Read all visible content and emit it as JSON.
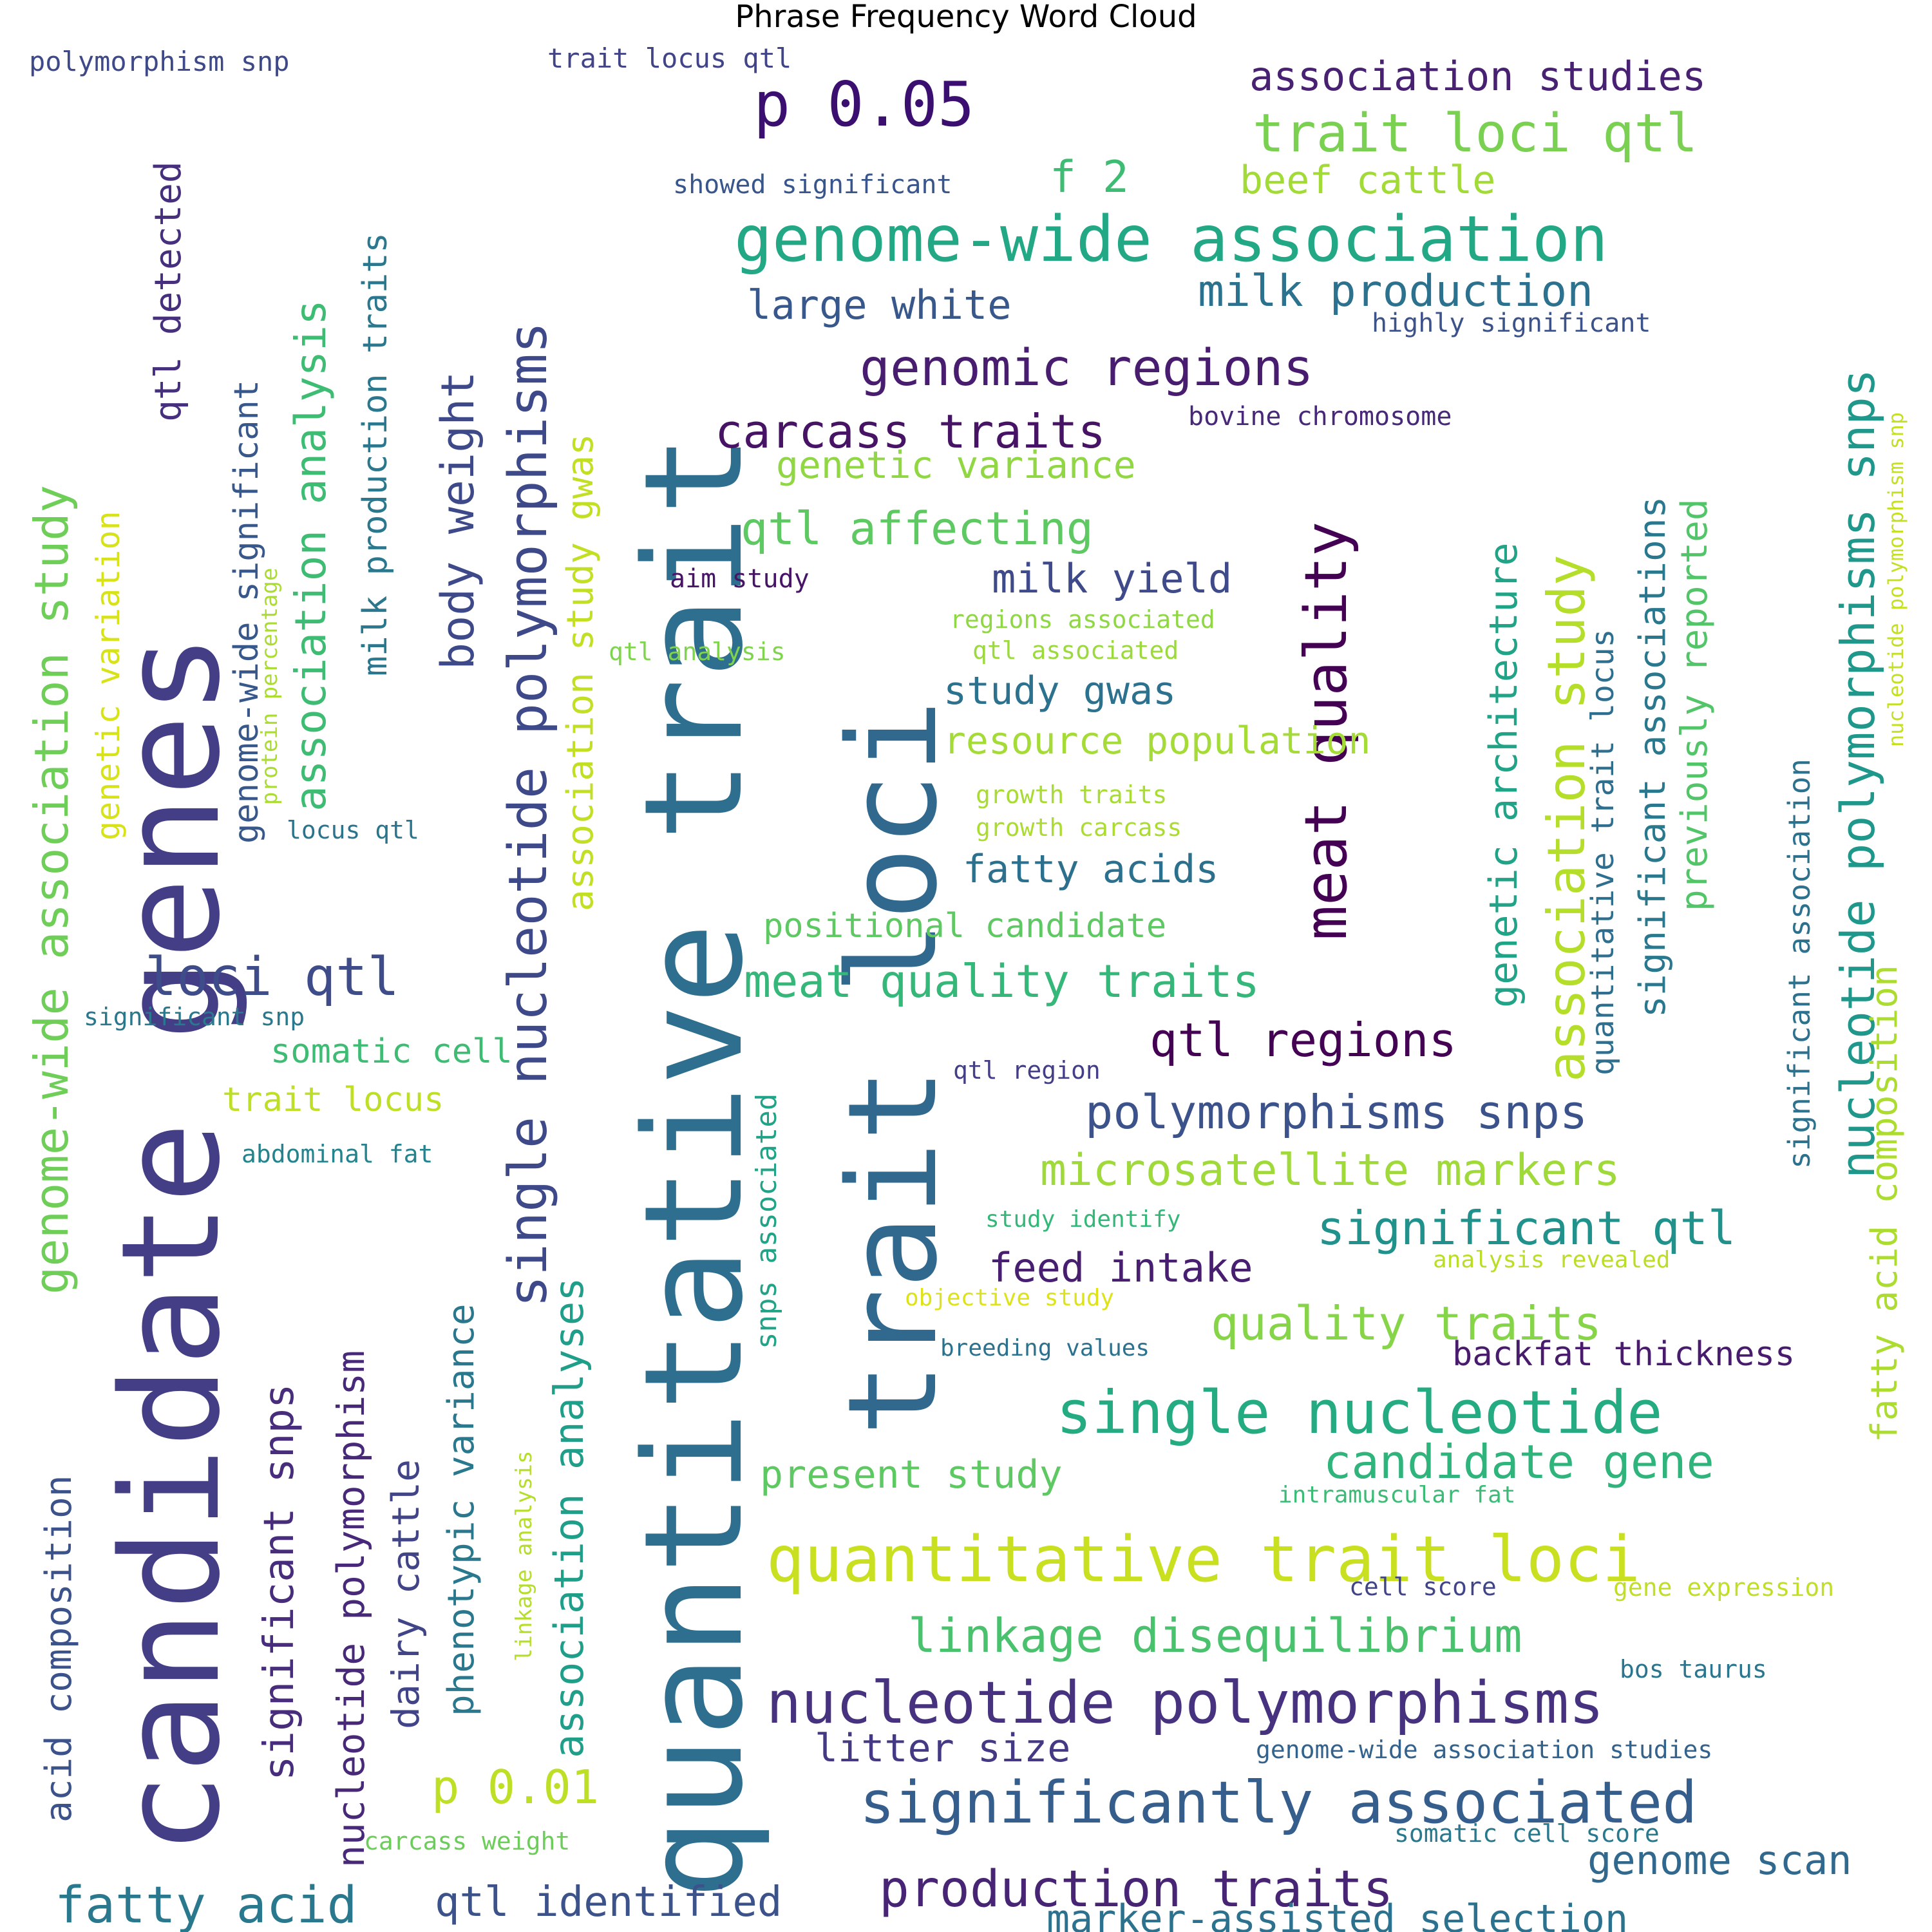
{
  "chart_data": {
    "type": "wordcloud",
    "title": "Phrase Frequency Word Cloud",
    "colormap": "viridis",
    "background": "#ffffff",
    "words": [
      {
        "text": "quantitative trait",
        "weight": 100,
        "color": "#2e6e8e"
      },
      {
        "text": "candidate genes",
        "weight": 96,
        "color": "#433e85"
      },
      {
        "text": "trait loci",
        "weight": 86,
        "color": "#31688e"
      },
      {
        "text": "genome-wide association",
        "weight": 42,
        "color": "#22a884"
      },
      {
        "text": "quantitative trait loci",
        "weight": 42,
        "color": "#c8e020"
      },
      {
        "text": "single nucleotide",
        "weight": 40,
        "color": "#25ab82"
      },
      {
        "text": "significantly associated",
        "weight": 38,
        "color": "#355e8d"
      },
      {
        "text": "nucleotide polymorphisms",
        "weight": 38,
        "color": "#46327e"
      },
      {
        "text": "meat quality",
        "weight": 38,
        "color": "#440154"
      },
      {
        "text": "p 0.05",
        "weight": 38,
        "color": "#3b0f70"
      },
      {
        "text": "single nucleotide polymorphisms",
        "weight": 37,
        "color": "#3e4989"
      },
      {
        "text": "loci qtl",
        "weight": 35,
        "color": "#3e4c8a"
      },
      {
        "text": "trait loci qtl",
        "weight": 34,
        "color": "#7ad151"
      },
      {
        "text": "association study",
        "weight": 33,
        "color": "#b5de2b"
      },
      {
        "text": "fatty acid",
        "weight": 32,
        "color": "#2a788e"
      },
      {
        "text": "genomic regions",
        "weight": 32,
        "color": "#481c6e"
      },
      {
        "text": "production traits",
        "weight": 31,
        "color": "#482475"
      },
      {
        "text": "nucleotide polymorphisms snps",
        "weight": 31,
        "color": "#1f988b"
      },
      {
        "text": "genome-wide association study",
        "weight": 31,
        "color": "#6ece58"
      },
      {
        "text": "linkage disequilibrium",
        "weight": 29,
        "color": "#4ac16d"
      },
      {
        "text": "qtl regions",
        "weight": 29,
        "color": "#440154"
      },
      {
        "text": "carcass traits",
        "weight": 29,
        "color": "#471365"
      },
      {
        "text": "polymorphisms snps",
        "weight": 29,
        "color": "#3b528b"
      },
      {
        "text": "p 0.01",
        "weight": 29,
        "color": "#bddf26"
      },
      {
        "text": "microsatellite markers",
        "weight": 28,
        "color": "#9fda3a"
      },
      {
        "text": "quality traits",
        "weight": 28,
        "color": "#86d549"
      },
      {
        "text": "significant qtl",
        "weight": 28,
        "color": "#21918c"
      },
      {
        "text": "candidate gene",
        "weight": 28,
        "color": "#2fb47c"
      },
      {
        "text": "meat quality traits",
        "weight": 27,
        "color": "#35b779"
      },
      {
        "text": "qtl affecting",
        "weight": 27,
        "color": "#5ec962"
      },
      {
        "text": "association analysis",
        "weight": 27,
        "color": "#3fbc73"
      },
      {
        "text": "milk production",
        "weight": 26,
        "color": "#2c718e"
      },
      {
        "text": "body weight",
        "weight": 26,
        "color": "#3e4989"
      },
      {
        "text": "qtl identified",
        "weight": 25,
        "color": "#3b528b"
      },
      {
        "text": "association analyses",
        "weight": 25,
        "color": "#1f9e89"
      },
      {
        "text": "significant snps",
        "weight": 25,
        "color": "#472d7b"
      },
      {
        "text": "f 2",
        "weight": 25,
        "color": "#3fbc73"
      },
      {
        "text": "genetic architecture",
        "weight": 24,
        "color": "#20a386"
      },
      {
        "text": "nucleotide polymorphism",
        "weight": 24,
        "color": "#482878"
      },
      {
        "text": "genome scan",
        "weight": 24,
        "color": "#31688e"
      },
      {
        "text": "marker-assisted selection",
        "weight": 24,
        "color": "#2c728e"
      },
      {
        "text": "significant associations",
        "weight": 23,
        "color": "#2a788e"
      },
      {
        "text": "milk yield",
        "weight": 23,
        "color": "#3e4a89"
      },
      {
        "text": "present study",
        "weight": 23,
        "color": "#5ec962"
      },
      {
        "text": "association studies",
        "weight": 23,
        "color": "#482173"
      },
      {
        "text": "association study gwas",
        "weight": 22,
        "color": "#c2df23"
      },
      {
        "text": "large white",
        "weight": 22,
        "color": "#38588c"
      },
      {
        "text": "fatty acids",
        "weight": 22,
        "color": "#2d708e"
      },
      {
        "text": "study gwas",
        "weight": 22,
        "color": "#2c718e"
      },
      {
        "text": "feed intake",
        "weight": 22,
        "color": "#481f70"
      },
      {
        "text": "litter size",
        "weight": 22,
        "color": "#443983"
      },
      {
        "text": "dairy cattle",
        "weight": 22,
        "color": "#414487"
      },
      {
        "text": "phenotypic variance",
        "weight": 21,
        "color": "#2a788e"
      },
      {
        "text": "qtl detected",
        "weight": 21,
        "color": "#46307e"
      },
      {
        "text": "previously reported",
        "weight": 21,
        "color": "#52c569"
      },
      {
        "text": "acid composition",
        "weight": 21,
        "color": "#3b528b"
      },
      {
        "text": "fatty acid composition",
        "weight": 21,
        "color": "#addc30"
      },
      {
        "text": "milk production traits",
        "weight": 21,
        "color": "#2a778e"
      },
      {
        "text": "genome-wide significant",
        "weight": 20,
        "color": "#38588c"
      },
      {
        "text": "resource population",
        "weight": 20,
        "color": "#a5db36"
      },
      {
        "text": "genetic variation",
        "weight": 20,
        "color": "#d8e219"
      },
      {
        "text": "genetic variance",
        "weight": 20,
        "color": "#90d743"
      },
      {
        "text": "beef cattle",
        "weight": 19,
        "color": "#a2da37"
      },
      {
        "text": "positional candidate",
        "weight": 18,
        "color": "#5ec962"
      },
      {
        "text": "somatic cell",
        "weight": 18,
        "color": "#3fbc73"
      },
      {
        "text": "trait locus",
        "weight": 18,
        "color": "#bddf26"
      },
      {
        "text": "quantitative trait locus",
        "weight": 18,
        "color": "#2e6e8e"
      },
      {
        "text": "significant association",
        "weight": 18,
        "color": "#2c728e"
      },
      {
        "text": "backfat thickness",
        "weight": 17,
        "color": "#481b6d"
      },
      {
        "text": "snps associated",
        "weight": 17,
        "color": "#20a386"
      },
      {
        "text": "highly significant",
        "weight": 15,
        "color": "#3b528b"
      },
      {
        "text": "polymorphism snp",
        "weight": 15,
        "color": "#3e4989"
      },
      {
        "text": "trait locus qtl",
        "weight": 15,
        "color": "#414487"
      },
      {
        "text": "showed significant",
        "weight": 15,
        "color": "#39568c"
      },
      {
        "text": "bovine chromosome",
        "weight": 15,
        "color": "#482878"
      },
      {
        "text": "aim study",
        "weight": 15,
        "color": "#481467"
      },
      {
        "text": "regions associated",
        "weight": 15,
        "color": "#8fd744"
      },
      {
        "text": "qtl associated",
        "weight": 15,
        "color": "#9bd93c"
      },
      {
        "text": "qtl analysis",
        "weight": 15,
        "color": "#7fd34e"
      },
      {
        "text": "growth traits",
        "weight": 15,
        "color": "#a8db34"
      },
      {
        "text": "growth carcass",
        "weight": 15,
        "color": "#addc30"
      },
      {
        "text": "locus qtl",
        "weight": 15,
        "color": "#2b748e"
      },
      {
        "text": "significant snp",
        "weight": 15,
        "color": "#2a788e"
      },
      {
        "text": "abdominal fat",
        "weight": 15,
        "color": "#25838e"
      },
      {
        "text": "qtl region",
        "weight": 15,
        "color": "#433e85"
      },
      {
        "text": "study identify",
        "weight": 15,
        "color": "#35b779"
      },
      {
        "text": "objective study",
        "weight": 15,
        "color": "#dde318"
      },
      {
        "text": "analysis revealed",
        "weight": 15,
        "color": "#bade28"
      },
      {
        "text": "breeding values",
        "weight": 15,
        "color": "#2c728e"
      },
      {
        "text": "intramuscular fat",
        "weight": 15,
        "color": "#3bbb75"
      },
      {
        "text": "cell score",
        "weight": 15,
        "color": "#414487"
      },
      {
        "text": "gene expression",
        "weight": 15,
        "color": "#c0df25"
      },
      {
        "text": "bos taurus",
        "weight": 15,
        "color": "#2b758e"
      },
      {
        "text": "genome-wide association studies",
        "weight": 15,
        "color": "#33638d"
      },
      {
        "text": "somatic cell score",
        "weight": 15,
        "color": "#29798e"
      },
      {
        "text": "carcass weight",
        "weight": 15,
        "color": "#6ccd5a"
      },
      {
        "text": "linkage analysis",
        "weight": 14,
        "color": "#b5de2b"
      },
      {
        "text": "protein percentage",
        "weight": 14,
        "color": "#aadc32"
      },
      {
        "text": "nucleotide polymorphism snp",
        "weight": 14,
        "color": "#c5e021"
      }
    ]
  }
}
